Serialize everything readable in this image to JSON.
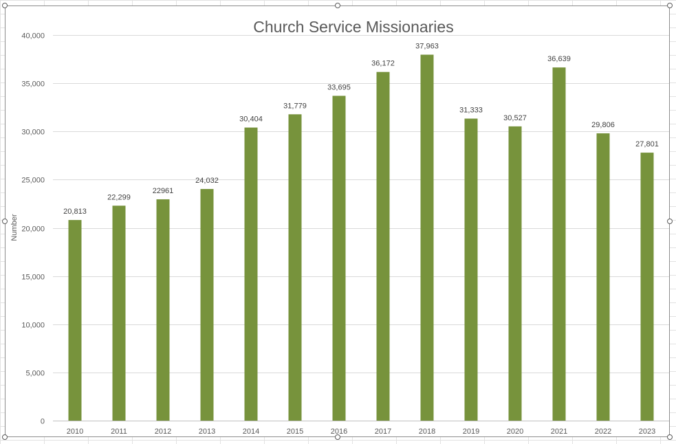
{
  "chart_data": {
    "type": "bar",
    "title": "Church Service Missionaries",
    "xlabel": "",
    "ylabel": "Number",
    "ylim": [
      0,
      40000
    ],
    "yticks": [
      0,
      5000,
      10000,
      15000,
      20000,
      25000,
      30000,
      35000,
      40000
    ],
    "ytick_labels": [
      "0",
      "5,000",
      "10,000",
      "15,000",
      "20,000",
      "25,000",
      "30,000",
      "35,000",
      "40,000"
    ],
    "grid": true,
    "bar_color": "#77933c",
    "categories": [
      "2010",
      "2011",
      "2012",
      "2013",
      "2014",
      "2015",
      "2016",
      "2017",
      "2018",
      "2019",
      "2020",
      "2021",
      "2022",
      "2023"
    ],
    "values": [
      20813,
      22299,
      22961,
      24032,
      30404,
      31779,
      33695,
      36172,
      37963,
      31333,
      30527,
      36639,
      29806,
      27801
    ],
    "data_labels": [
      "20,813",
      "22,299",
      "22961",
      "24,032",
      "30,404",
      "31,779",
      "33,695",
      "36,172",
      "37,963",
      "31,333",
      "30,527",
      "36,639",
      "29,806",
      "27,801"
    ]
  }
}
